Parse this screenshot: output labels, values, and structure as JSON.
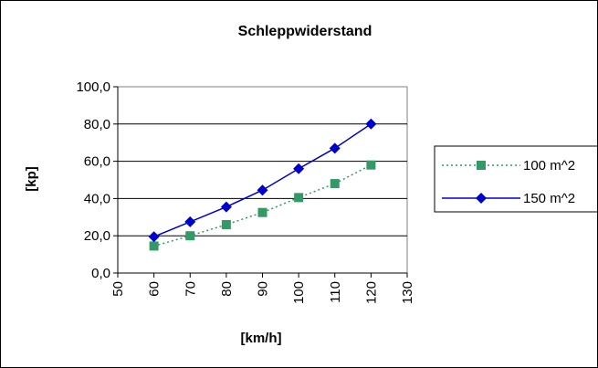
{
  "chart_data": {
    "type": "line",
    "title": "Schleppwiderstand",
    "xlabel": "[km/h]",
    "ylabel": "[kp]",
    "xlim": [
      50,
      130
    ],
    "ylim": [
      0,
      100
    ],
    "x_ticks": [
      "50",
      "60",
      "70",
      "80",
      "90",
      "100",
      "110",
      "120",
      "130"
    ],
    "y_ticks": [
      "0,0",
      "20,0",
      "40,0",
      "60,0",
      "80,0",
      "100,0"
    ],
    "x": [
      60,
      70,
      80,
      90,
      100,
      110,
      120
    ],
    "grid": "horizontal",
    "legend_position": "right",
    "series": [
      {
        "name": "100 m^2",
        "values": [
          14.5,
          20,
          26,
          32.5,
          40.5,
          48,
          58
        ],
        "color": "#339966",
        "line_style": "dotted",
        "marker": "square"
      },
      {
        "name": "150 m^2",
        "values": [
          19.5,
          27.5,
          35.5,
          44.5,
          56,
          67,
          80
        ],
        "color": "#0000cc",
        "line_style": "solid",
        "marker": "diamond"
      }
    ]
  }
}
